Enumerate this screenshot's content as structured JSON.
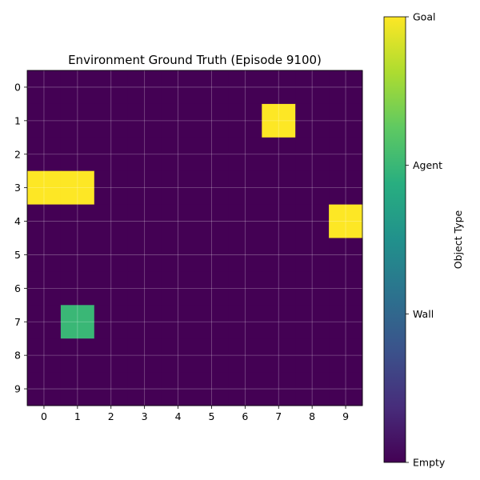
{
  "chart_data": {
    "type": "heatmap",
    "title": "Environment Ground Truth (Episode 9100)",
    "x_ticks": [
      "0",
      "1",
      "2",
      "3",
      "4",
      "5",
      "6",
      "7",
      "8",
      "9"
    ],
    "y_ticks": [
      "0",
      "1",
      "2",
      "3",
      "4",
      "5",
      "6",
      "7",
      "8",
      "9"
    ],
    "grid": true,
    "colormap": "viridis",
    "color_range": [
      0,
      3
    ],
    "colorbar": {
      "label": "Object Type",
      "ticks": [
        {
          "value": 0,
          "label": "Empty"
        },
        {
          "value": 1,
          "label": "Wall"
        },
        {
          "value": 2,
          "label": "Agent"
        },
        {
          "value": 3,
          "label": "Goal"
        }
      ]
    },
    "values": [
      [
        0,
        0,
        0,
        0,
        0,
        0,
        0,
        0,
        0,
        0
      ],
      [
        0,
        0,
        0,
        0,
        0,
        0,
        0,
        3,
        0,
        0
      ],
      [
        0,
        0,
        0,
        0,
        0,
        0,
        0,
        0,
        0,
        0
      ],
      [
        3,
        3,
        0,
        0,
        0,
        0,
        0,
        0,
        0,
        0
      ],
      [
        0,
        0,
        0,
        0,
        0,
        0,
        0,
        0,
        0,
        3
      ],
      [
        0,
        0,
        0,
        0,
        0,
        0,
        0,
        0,
        0,
        0
      ],
      [
        0,
        0,
        0,
        0,
        0,
        0,
        0,
        0,
        0,
        0
      ],
      [
        0,
        2,
        0,
        0,
        0,
        0,
        0,
        0,
        0,
        0
      ],
      [
        0,
        0,
        0,
        0,
        0,
        0,
        0,
        0,
        0,
        0
      ],
      [
        0,
        0,
        0,
        0,
        0,
        0,
        0,
        0,
        0,
        0
      ]
    ]
  }
}
